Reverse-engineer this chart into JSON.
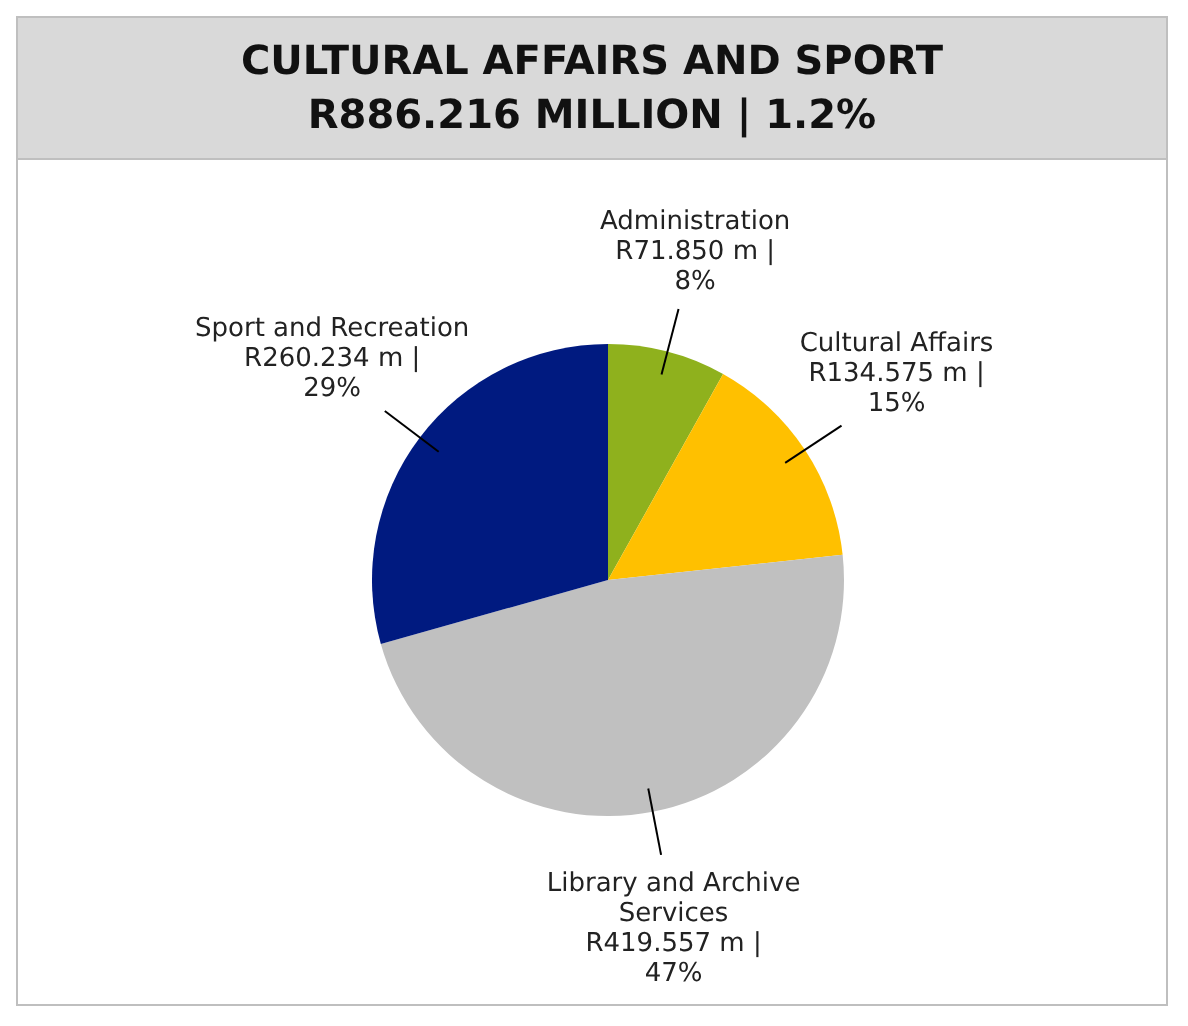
{
  "chart_data": {
    "type": "pie",
    "title": "CULTURAL AFFAIRS AND SPORT",
    "subtitle": "R886.216 MILLION | 1.2%",
    "categories": [
      "Administration",
      "Cultural Affairs",
      "Library and Archive Services",
      "Sport and Recreation"
    ],
    "values": [
      71.85,
      134.575,
      419.557,
      260.234
    ],
    "colors": [
      "#8fb11d",
      "#ffc000",
      "#c0c0c0",
      "#001a80"
    ],
    "value_labels": [
      "R71.850 m | 8%",
      "R134.575 m | 15%",
      "R419.557 m | 47%",
      "R260.234 m | 29%"
    ]
  }
}
